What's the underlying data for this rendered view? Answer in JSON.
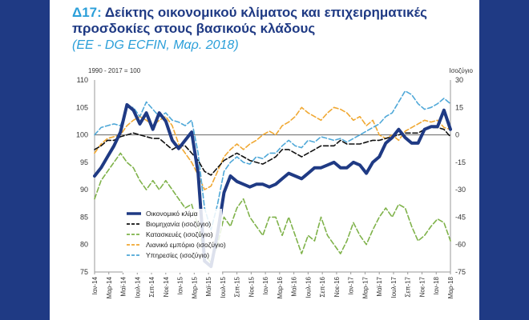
{
  "header": {
    "code": "Δ17:",
    "title_line1": "Δείκτης οικονομικού κλίματος και επιχειρηματικές",
    "title_line2": "προσδοκίες στους βασικούς κλάδους",
    "source": "(ΕΕ - DG ECFIN, Μαρ. 2018)"
  },
  "chart_data": {
    "type": "line",
    "left_axis_note": "1990 - 2017 = 100",
    "right_axis_note": "Ισοζύγιο",
    "ylim_left": [
      75,
      110
    ],
    "ylim_right": [
      -75,
      30
    ],
    "yticks_left": [
      "110",
      "105",
      "100",
      "95",
      "90",
      "85",
      "80",
      "75"
    ],
    "yticks_right": [
      "30",
      "15",
      "0",
      "-15",
      "-30",
      "-45",
      "-60",
      "-75"
    ],
    "x_ticks": [
      "Ιαν-14",
      "Μαρ-14",
      "Μαϊ-14",
      "Ιουλ-14",
      "Σεπ-14",
      "Νοε-14",
      "Ιαν-15",
      "Μαρ-15",
      "Μαϊ-15",
      "Ιουλ-15",
      "Σεπ-15",
      "Νοε-15",
      "Ιαν-16",
      "Μαρ-16",
      "Μαϊ-16",
      "Ιουλ-16",
      "Σεπ-16",
      "Νοε-16",
      "Ιαν-17",
      "Μαρ-17",
      "Μαϊ-17",
      "Ιουλ-17",
      "Σεπ-17",
      "Νοε-17",
      "Ιαν-18",
      "Μαρ-18"
    ],
    "grid": false,
    "legend_position": "bottom-left",
    "series": [
      {
        "name": "Οικονομικό κλίμα",
        "axis": "left",
        "color": "#1f3a84",
        "width": 4,
        "dash": "",
        "values": [
          92.5,
          94,
          96,
          98,
          100.5,
          105.5,
          104.5,
          102,
          104,
          101,
          104,
          102.5,
          99,
          97.5,
          99,
          100.5,
          93,
          77,
          76,
          82,
          89.5,
          92.5,
          91.5,
          91,
          90.5,
          91,
          91,
          90.5,
          91,
          92,
          93,
          92.5,
          92,
          93,
          94,
          94,
          94.5,
          95,
          94,
          94,
          95,
          94.5,
          93,
          95,
          96,
          98.5,
          99.5,
          101,
          99.5,
          98.5,
          98.5,
          101,
          101.5,
          101.5,
          104.5,
          101
        ]
      },
      {
        "name": "Βιομηχανία (ισοζύγιο)",
        "axis": "right",
        "color": "#111111",
        "width": 1.6,
        "dash": "6 3",
        "values": [
          -8,
          -6,
          -3,
          -3,
          -1,
          0,
          1,
          0,
          -1,
          -2,
          -2,
          -5,
          -8,
          -6,
          -6,
          -10,
          -14,
          -20,
          -22,
          -18,
          -14,
          -12,
          -10,
          -12,
          -14,
          -15,
          -16,
          -14,
          -12,
          -8,
          -8,
          -10,
          -12,
          -10,
          -8,
          -6,
          -6,
          -6,
          -3,
          -5,
          -5,
          -5,
          -4,
          -3,
          -3,
          -2,
          -1,
          0,
          1,
          1,
          1,
          3,
          4,
          4,
          3,
          -1
        ]
      },
      {
        "name": "Κατασκευές (ισοζύγιο)",
        "axis": "right",
        "color": "#7fb24a",
        "width": 1.6,
        "dash": "6 3",
        "values": [
          -35,
          -25,
          -20,
          -15,
          -10,
          -15,
          -18,
          -25,
          -30,
          -25,
          -30,
          -25,
          -30,
          -35,
          -40,
          -38,
          -50,
          -65,
          -70,
          -60,
          -45,
          -50,
          -40,
          -35,
          -45,
          -50,
          -55,
          -45,
          -45,
          -55,
          -45,
          -55,
          -65,
          -55,
          -58,
          -45,
          -55,
          -60,
          -65,
          -58,
          -48,
          -55,
          -60,
          -52,
          -45,
          -40,
          -45,
          -38,
          -40,
          -50,
          -58,
          -55,
          -50,
          -46,
          -48,
          -58
        ]
      },
      {
        "name": "Λιανικό εμπόριο (ισοζύγιο)",
        "axis": "right",
        "color": "#f0a832",
        "width": 1.6,
        "dash": "6 3",
        "values": [
          -10,
          -5,
          -2,
          -1,
          0,
          5,
          8,
          10,
          8,
          5,
          8,
          10,
          5,
          -5,
          -10,
          -15,
          -22,
          -30,
          -28,
          -20,
          -12,
          -8,
          -5,
          -8,
          -5,
          -3,
          0,
          2,
          0,
          5,
          7,
          10,
          15,
          12,
          10,
          8,
          12,
          15,
          14,
          12,
          8,
          10,
          5,
          8,
          0,
          -2,
          0,
          -3,
          2,
          4,
          6,
          8,
          7,
          8,
          4,
          3
        ]
      },
      {
        "name": "Υπηρεσίες (ισοζύγιο)",
        "axis": "right",
        "color": "#4fa8d8",
        "width": 1.6,
        "dash": "6 3",
        "values": [
          0,
          4,
          5,
          6,
          5,
          15,
          15,
          10,
          18,
          14,
          10,
          12,
          8,
          7,
          5,
          8,
          -10,
          -40,
          -52,
          -38,
          -20,
          -15,
          -12,
          -15,
          -16,
          -12,
          -13,
          -10,
          -10,
          -6,
          -3,
          -6,
          -7,
          -3,
          -4,
          -1,
          -2,
          -3,
          -2,
          -4,
          -2,
          0,
          2,
          4,
          6,
          10,
          12,
          18,
          24,
          22,
          17,
          14,
          15,
          17,
          20,
          17
        ]
      }
    ]
  }
}
